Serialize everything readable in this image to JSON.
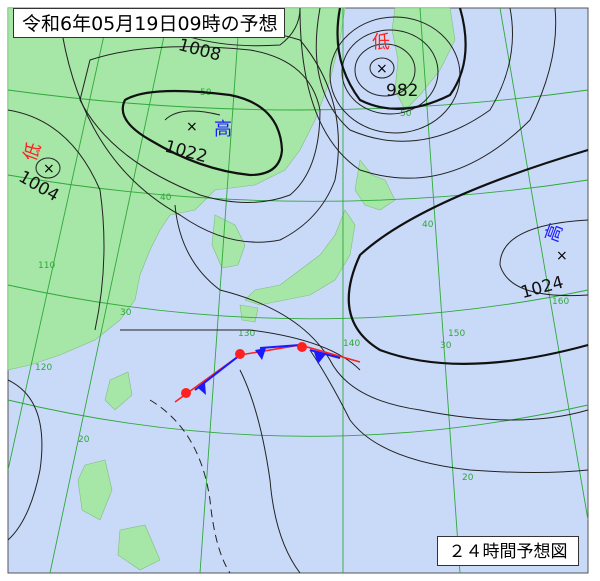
{
  "header": {
    "title": "令和6年05月19日09時の予想"
  },
  "footer": {
    "forecast_label": "２４時間予想図"
  },
  "colors": {
    "sea": "#c9daf8",
    "land": "#a6e6a6",
    "grid": "#2fa83a",
    "high": "#1a1aff",
    "low": "#ff2020",
    "warm_front": "#ff2020",
    "cold_front": "#1a1aff"
  },
  "pressure_systems": [
    {
      "type_label": "高",
      "kind": "high",
      "pressure": "1022"
    },
    {
      "type_label": "低",
      "kind": "low",
      "pressure": "982"
    },
    {
      "type_label": "低",
      "kind": "low",
      "pressure": "1004"
    },
    {
      "type_label": "高",
      "kind": "high",
      "pressure": "1024"
    }
  ],
  "isobar_labels": [
    "1008"
  ],
  "grid_labels": {
    "latitudes": [
      "50",
      "40",
      "30",
      "20",
      "50",
      "40",
      "30",
      "20"
    ],
    "longitudes": [
      "110",
      "120",
      "130",
      "140",
      "150",
      "160"
    ]
  },
  "front": "stationary"
}
